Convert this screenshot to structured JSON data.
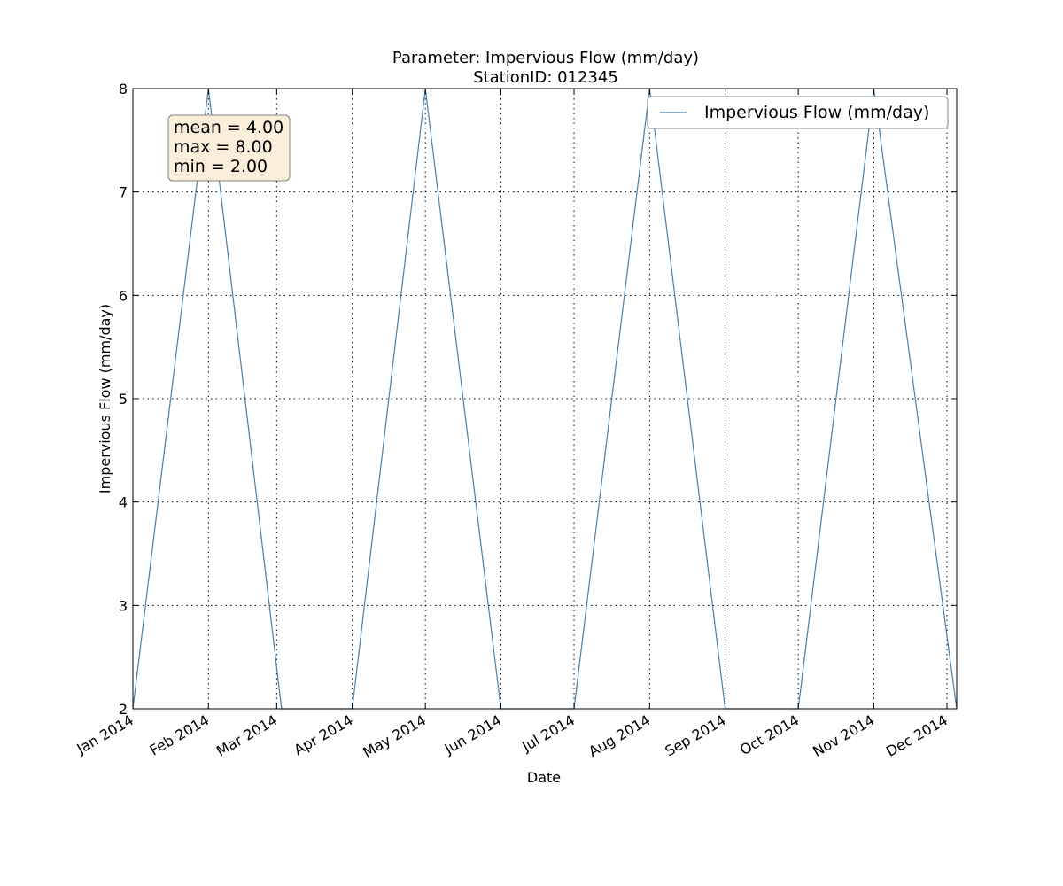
{
  "chart_data": {
    "type": "line",
    "title": "Parameter: Impervious Flow (mm/day)",
    "subtitle": "StationID: 012345",
    "xlabel": "Date",
    "ylabel": "Impervious Flow (mm/day)",
    "xlim": [
      "2014-01-01",
      "2014-12-05"
    ],
    "ylim": [
      2,
      8
    ],
    "grid": true,
    "legend_position": "top-right",
    "xtick_labels": [
      {
        "date": "2014-01-01",
        "label": "Jan 2014"
      },
      {
        "date": "2014-02-01",
        "label": "Feb 2014"
      },
      {
        "date": "2014-03-01",
        "label": "Mar 2014"
      },
      {
        "date": "2014-04-01",
        "label": "Apr 2014"
      },
      {
        "date": "2014-05-01",
        "label": "May 2014"
      },
      {
        "date": "2014-06-01",
        "label": "Jun 2014"
      },
      {
        "date": "2014-07-01",
        "label": "Jul 2014"
      },
      {
        "date": "2014-08-01",
        "label": "Aug 2014"
      },
      {
        "date": "2014-09-01",
        "label": "Sep 2014"
      },
      {
        "date": "2014-10-01",
        "label": "Oct 2014"
      },
      {
        "date": "2014-11-01",
        "label": "Nov 2014"
      },
      {
        "date": "2014-12-01",
        "label": "Dec 2014"
      }
    ],
    "ytick_labels": [
      "2",
      "3",
      "4",
      "5",
      "6",
      "7",
      "8"
    ],
    "series": [
      {
        "name": "Impervious Flow (mm/day)",
        "color": "#4b7faa",
        "points": [
          {
            "x": "2014-01-01",
            "y": 2
          },
          {
            "x": "2014-02-01",
            "y": 8
          },
          {
            "x": "2014-03-03",
            "y": 2
          },
          {
            "x": "2014-04-01",
            "y": 2
          },
          {
            "x": "2014-05-01",
            "y": 8
          },
          {
            "x": "2014-06-01",
            "y": 2
          },
          {
            "x": "2014-07-01",
            "y": 2
          },
          {
            "x": "2014-08-01",
            "y": 8
          },
          {
            "x": "2014-09-01",
            "y": 2
          },
          {
            "x": "2014-10-01",
            "y": 2
          },
          {
            "x": "2014-11-01",
            "y": 8
          },
          {
            "x": "2014-12-05",
            "y": 2
          }
        ]
      }
    ],
    "annotation": {
      "lines": [
        "mean = 4.00",
        "max = 8.00",
        "min = 2.00"
      ],
      "background": "#fbeedb"
    }
  }
}
